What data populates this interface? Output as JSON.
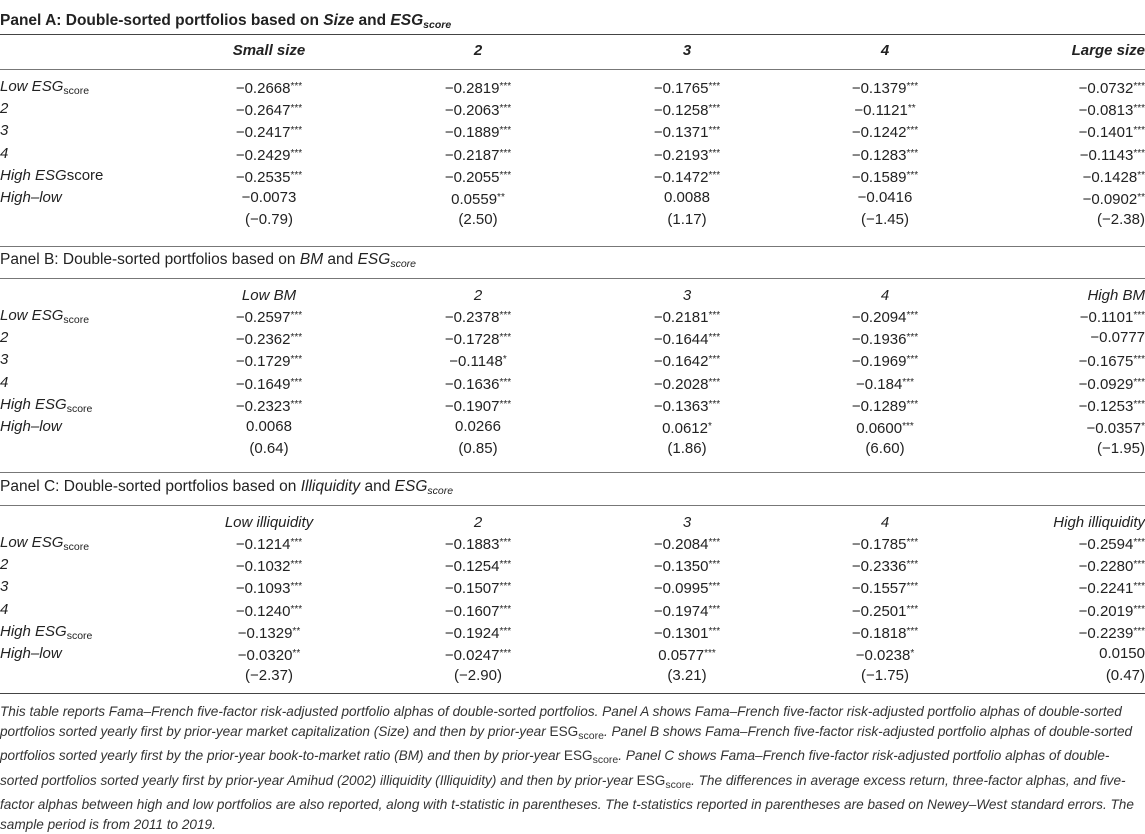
{
  "panels": [
    {
      "title_prefix": "Panel A: Double-sorted portfolios based on ",
      "title_var1": "Size",
      "title_mid": " and ",
      "title_var2": "ESG",
      "title_var2_sub": "score",
      "headers": [
        "Small size",
        "2",
        "3",
        "4",
        "Large size"
      ],
      "rows": [
        {
          "label": "Low ESG",
          "label_sub": "score",
          "cells": [
            "−0.2668***",
            "−0.2819***",
            "−0.1765***",
            "−0.1379***",
            "−0.0732***"
          ]
        },
        {
          "label": "2",
          "label_sub": "",
          "cells": [
            "−0.2647***",
            "−0.2063***",
            "−0.1258***",
            "−0.1121**",
            "−0.0813***"
          ]
        },
        {
          "label": "3",
          "label_sub": "",
          "cells": [
            "−0.2417***",
            "−0.1889***",
            "−0.1371***",
            "−0.1242***",
            "−0.1401***"
          ]
        },
        {
          "label": "4",
          "label_sub": "",
          "cells": [
            "−0.2429***",
            "−0.2187***",
            "−0.2193***",
            "−0.1283***",
            "−0.1143***"
          ]
        },
        {
          "label": "High ESG",
          "label_tail": "score",
          "label_sub": "",
          "cells": [
            "−0.2535***",
            "−0.2055***",
            "−0.1472***",
            "−0.1589***",
            "−0.1428**"
          ]
        },
        {
          "label": "High–low",
          "label_sub": "",
          "cells": [
            "−0.0073",
            "0.0559**",
            "0.0088",
            "−0.0416",
            "−0.0902**"
          ]
        },
        {
          "label": "",
          "label_sub": "",
          "cells": [
            "(−0.79)",
            "(2.50)",
            "(1.17)",
            "(−1.45)",
            "(−2.38)"
          ]
        }
      ]
    },
    {
      "title_prefix": "Panel B: Double-sorted portfolios based on ",
      "title_var1": "BM",
      "title_mid": " and ",
      "title_var2": "ESG",
      "title_var2_sub": "score",
      "headers": [
        "Low BM",
        "2",
        "3",
        "4",
        "High BM"
      ],
      "rows": [
        {
          "label": "Low ESG",
          "label_sub": "score",
          "cells": [
            "−0.2597***",
            "−0.2378***",
            "−0.2181***",
            "−0.2094***",
            "−0.1101***"
          ]
        },
        {
          "label": "2",
          "label_sub": "",
          "cells": [
            "−0.2362***",
            "−0.1728***",
            "−0.1644***",
            "−0.1936***",
            "−0.0777"
          ]
        },
        {
          "label": "3",
          "label_sub": "",
          "cells": [
            "−0.1729***",
            "−0.1148*",
            "−0.1642***",
            "−0.1969***",
            "−0.1675***"
          ]
        },
        {
          "label": "4",
          "label_sub": "",
          "cells": [
            "−0.1649***",
            "−0.1636***",
            "−0.2028***",
            "−0.184***",
            "−0.0929***"
          ]
        },
        {
          "label": "High ESG",
          "label_sub": "score",
          "cells": [
            "−0.2323***",
            "−0.1907***",
            "−0.1363***",
            "−0.1289***",
            "−0.1253***"
          ]
        },
        {
          "label": "High–low",
          "label_sub": "",
          "cells": [
            "0.0068",
            "0.0266",
            "0.0612*",
            "0.0600***",
            "−0.0357*"
          ]
        },
        {
          "label": "",
          "label_sub": "",
          "cells": [
            "(0.64)",
            "(0.85)",
            "(1.86)",
            "(6.60)",
            "(−1.95)"
          ]
        }
      ]
    },
    {
      "title_prefix": "Panel C: Double-sorted portfolios based on ",
      "title_var1": "Illiquidity",
      "title_mid": " and ",
      "title_var2": "ESG",
      "title_var2_sub": "score",
      "headers": [
        "Low illiquidity",
        "2",
        "3",
        "4",
        "High illiquidity"
      ],
      "rows": [
        {
          "label": "Low ESG",
          "label_sub": "score",
          "cells": [
            "−0.1214***",
            "−0.1883***",
            "−0.2084***",
            "−0.1785***",
            "−0.2594***"
          ]
        },
        {
          "label": "2",
          "label_sub": "",
          "cells": [
            "−0.1032***",
            "−0.1254***",
            "−0.1350***",
            "−0.2336***",
            "−0.2280***"
          ]
        },
        {
          "label": "3",
          "label_sub": "",
          "cells": [
            "−0.1093***",
            "−0.1507***",
            "−0.0995***",
            "−0.1557***",
            "−0.2241***"
          ]
        },
        {
          "label": "4",
          "label_sub": "",
          "cells": [
            "−0.1240***",
            "−0.1607***",
            "−0.1974***",
            "−0.2501***",
            "−0.2019***"
          ]
        },
        {
          "label": "High ESG",
          "label_sub": "score",
          "cells": [
            "−0.1329**",
            "−0.1924***",
            "−0.1301***",
            "−0.1818***",
            "−0.2239***"
          ]
        },
        {
          "label": "High–low",
          "label_sub": "",
          "cells": [
            "−0.0320**",
            "−0.0247***",
            "0.0577***",
            "−0.0238*",
            "0.0150"
          ]
        },
        {
          "label": "",
          "label_sub": "",
          "cells": [
            "(−2.37)",
            "(−2.90)",
            "(3.21)",
            "(−1.75)",
            "(0.47)"
          ]
        }
      ]
    }
  ],
  "note": {
    "p1": "This table reports Fama–French five-factor risk-adjusted portfolio alphas of double-sorted portfolios. Panel A shows Fama–French five-factor risk-adjusted portfolio alphas of double-sorted portfolios sorted yearly first by prior-year market capitalization (Size) and then by prior-year ",
    "esg1": "ESG",
    "sub1": "score",
    "p2": ". Panel B shows Fama–French five-factor risk-adjusted portfolio alphas of double-sorted portfolios sorted yearly first by the prior-year book-to-market ratio (BM) and then by prior-year ",
    "esg2": "ESG",
    "sub2": "score",
    "p3": ". Panel C shows Fama–French five-factor risk-adjusted portfolio alphas of double-sorted portfolios sorted yearly first by prior-year Amihud (2002) illiquidity (Illiquidity) and then by prior-year ",
    "esg3": "ESG",
    "sub3": "score",
    "p4": ". The differences in average excess return, three-factor alphas, and five-factor alphas between high and low portfolios are also reported, along with t-statistic in parentheses. The t-statistics reported in parentheses are based on Newey–West standard errors. The sample period is from 2011 to 2019."
  }
}
